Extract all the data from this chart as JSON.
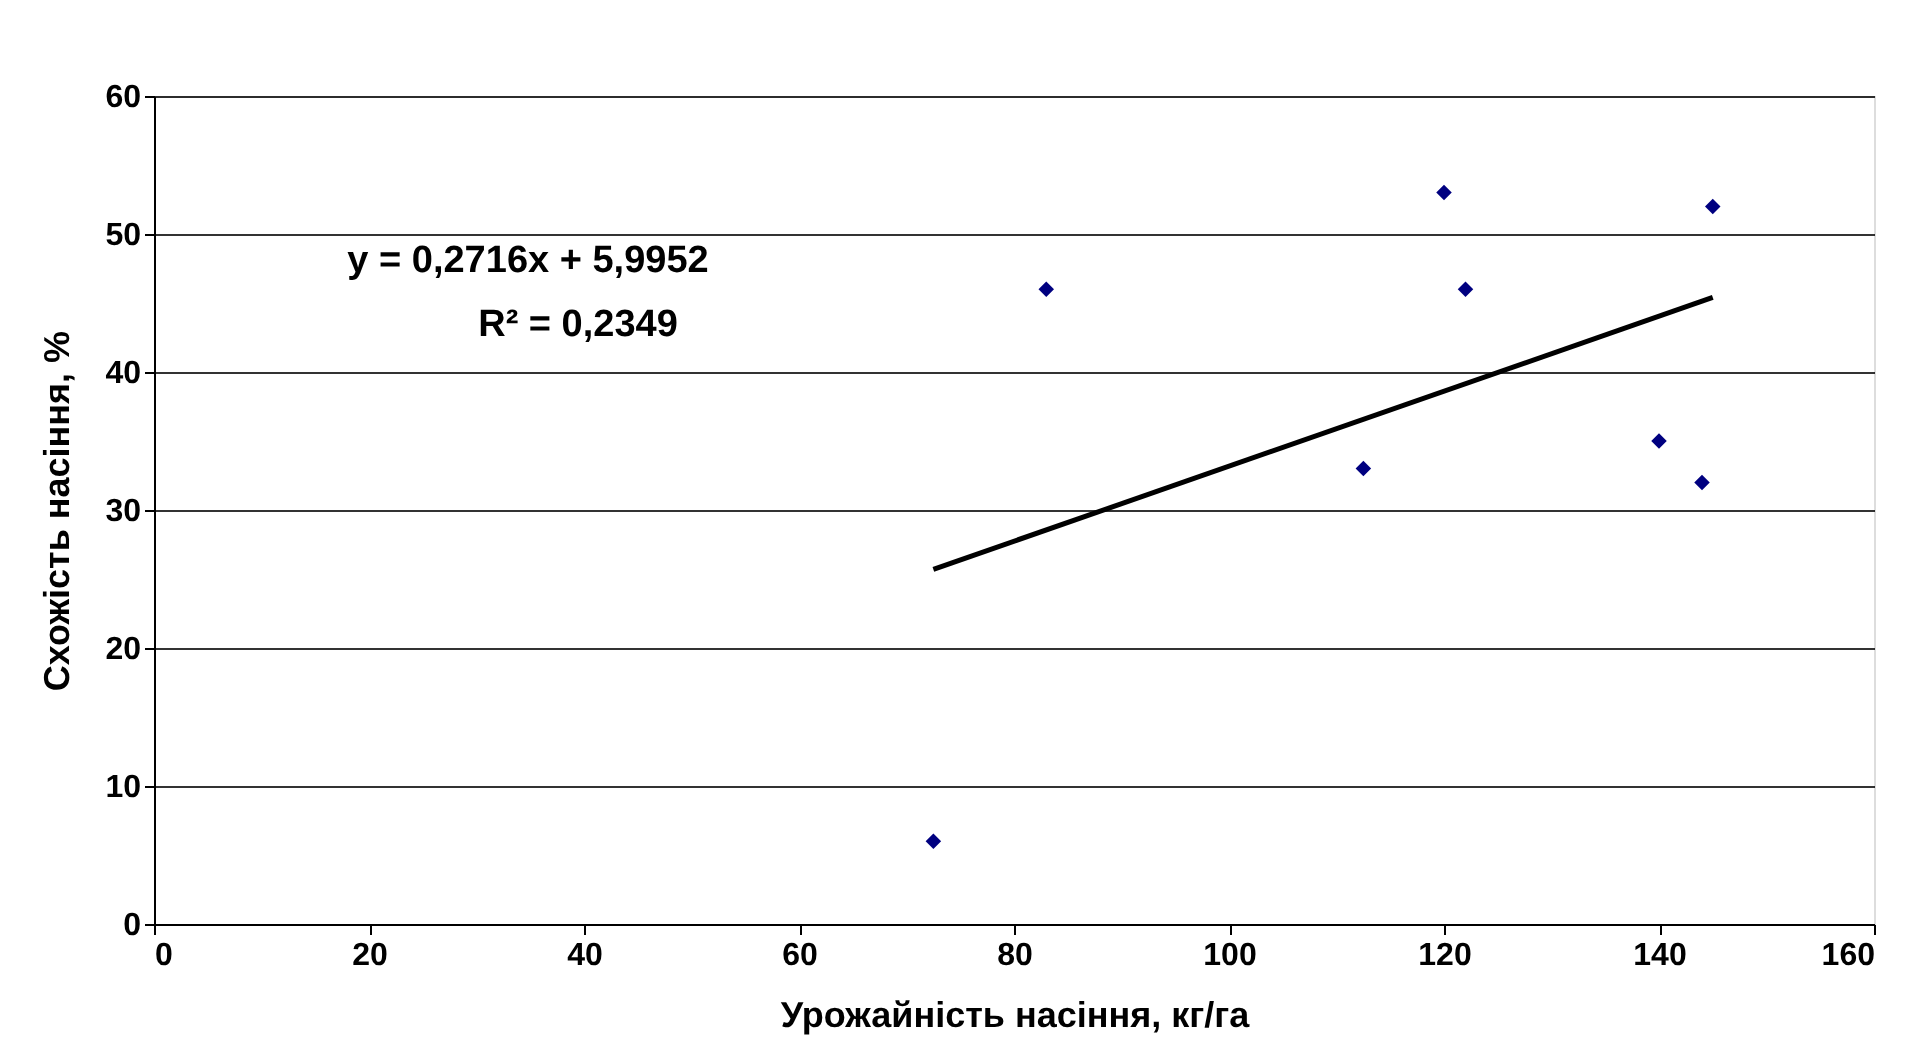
{
  "chart_data": {
    "type": "scatter",
    "xlabel": "Урожайність насіння, кг/га",
    "ylabel": "Схожість насіння, %",
    "annotations": [
      "y = 0,2716x + 5,9952",
      "R² = 0,2349"
    ],
    "series": [
      {
        "color": "#000080",
        "marker": "diamond",
        "x": [
          72.5,
          83,
          112.5,
          120,
          122,
          140,
          144,
          145
        ],
        "values": [
          6,
          46,
          33,
          53,
          46,
          35,
          32,
          52
        ]
      },
      {
        "type": "line",
        "color": "#000000",
        "line_style": "solid",
        "x": [
          72.5,
          145
        ],
        "values": [
          25.7,
          45.4
        ]
      }
    ],
    "xlim": [
      0,
      160
    ],
    "xticks": [
      0,
      20,
      40,
      60,
      80,
      100,
      120,
      140,
      160
    ],
    "ylim": [
      0,
      60
    ],
    "yticks": [
      0,
      10,
      20,
      30,
      40,
      50,
      60
    ],
    "grid": "y"
  }
}
